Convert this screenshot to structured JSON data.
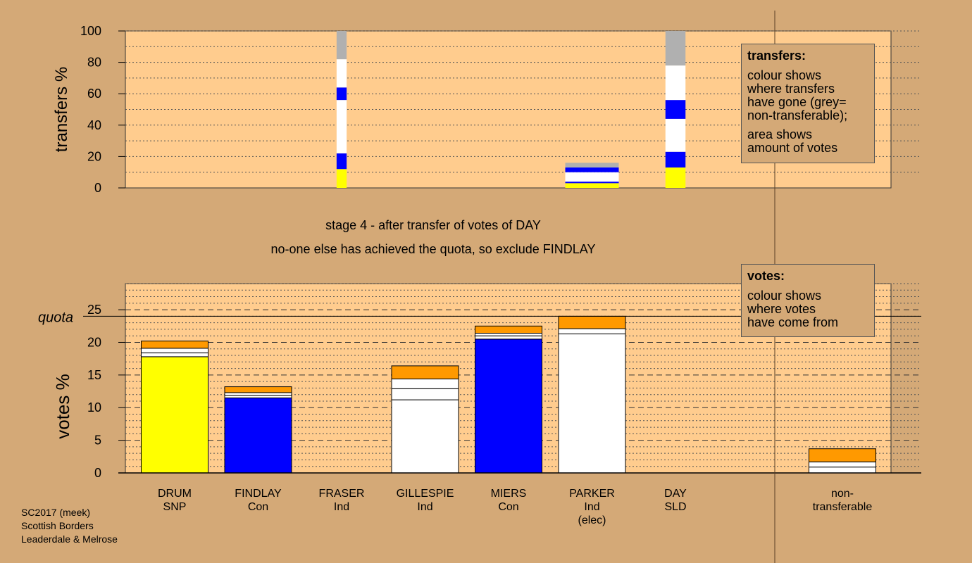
{
  "colors": {
    "background": "#d4a977",
    "plot_area": "#ffcc8e",
    "SNP": "#ffff00",
    "Con": "#0000ff",
    "Ind": "#ffffff",
    "LD": "#ff9900",
    "non_transferable": "#b0b0b0"
  },
  "stage_text": "stage 4 - after transfer of votes of DAY",
  "exclusion_text": "no-one else has achieved the quota, so exclude FINDLAY",
  "transfers_legend": {
    "heading": "transfers:",
    "line1": "colour shows\nwhere transfers\nhave gone (grey=\nnon-transferable);",
    "line2": "area shows\namount of votes"
  },
  "votes_legend": {
    "heading": "votes:",
    "line1": "colour shows\nwhere votes\nhave come from"
  },
  "credits": {
    "line1": "SC2017 (meek)",
    "line2": "Scottish Borders",
    "line3": "Leaderdale & Melrose"
  },
  "chart_data": [
    {
      "id": "transfers",
      "type": "bar",
      "ylabel": "transfers %",
      "ylim": [
        0,
        100
      ],
      "yticks": [
        0,
        20,
        40,
        60,
        80,
        100
      ],
      "legend_placement": "top-right",
      "bars": [
        {
          "category_index": 2,
          "width_frac": 0.15,
          "segments": [
            {
              "from": 0,
              "to": 12,
              "color": "#ffff00"
            },
            {
              "from": 12,
              "to": 22,
              "color": "#0000ff"
            },
            {
              "from": 22,
              "to": 56,
              "color": "#ffffff"
            },
            {
              "from": 56,
              "to": 64,
              "color": "#0000ff"
            },
            {
              "from": 64,
              "to": 82,
              "color": "#ffffff"
            },
            {
              "from": 82,
              "to": 100,
              "color": "#b0b0b0"
            }
          ]
        },
        {
          "category_index": 5,
          "width_frac": 0.8,
          "segments": [
            {
              "from": 0,
              "to": 3,
              "color": "#ffff00"
            },
            {
              "from": 3,
              "to": 4,
              "color": "#0000ff"
            },
            {
              "from": 4,
              "to": 10,
              "color": "#ffffff"
            },
            {
              "from": 10,
              "to": 13,
              "color": "#0000ff"
            },
            {
              "from": 13,
              "to": 16,
              "color": "#b0b0b0"
            }
          ]
        },
        {
          "category_index": 6,
          "width_frac": 0.3,
          "segments": [
            {
              "from": 0,
              "to": 13,
              "color": "#ffff00"
            },
            {
              "from": 13,
              "to": 23,
              "color": "#0000ff"
            },
            {
              "from": 23,
              "to": 44,
              "color": "#ffffff"
            },
            {
              "from": 44,
              "to": 56,
              "color": "#0000ff"
            },
            {
              "from": 56,
              "to": 78,
              "color": "#ffffff"
            },
            {
              "from": 78,
              "to": 100,
              "color": "#b0b0b0"
            }
          ]
        }
      ]
    },
    {
      "id": "votes",
      "type": "bar",
      "ylabel": "votes %",
      "ylim": [
        0,
        29
      ],
      "yticks": [
        0,
        5,
        10,
        15,
        20,
        25
      ],
      "quota": 24,
      "quota_label": "quota",
      "legend_placement": "top-right",
      "categories": [
        {
          "name": "DRUM",
          "party": "SNP",
          "extra": ""
        },
        {
          "name": "FINDLAY",
          "party": "Con",
          "extra": ""
        },
        {
          "name": "FRASER",
          "party": "Ind",
          "extra": ""
        },
        {
          "name": "GILLESPIE",
          "party": "Ind",
          "extra": ""
        },
        {
          "name": "MIERS",
          "party": "Con",
          "extra": ""
        },
        {
          "name": "PARKER",
          "party": "Ind",
          "extra": "(elec)"
        },
        {
          "name": "DAY",
          "party": "SLD",
          "extra": ""
        },
        {
          "name": "",
          "party": "",
          "extra": ""
        },
        {
          "name": "non-",
          "party": "transferable",
          "extra": ""
        }
      ],
      "bars": [
        {
          "category_index": 0,
          "segments": [
            {
              "from": 0,
              "to": 17.8,
              "color": "#ffff00"
            },
            {
              "from": 17.8,
              "to": 18.4,
              "color": "#ffffff"
            },
            {
              "from": 18.4,
              "to": 19.1,
              "color": "#ffffff"
            },
            {
              "from": 19.1,
              "to": 20.2,
              "color": "#ff9900"
            }
          ]
        },
        {
          "category_index": 1,
          "segments": [
            {
              "from": 0,
              "to": 11.5,
              "color": "#0000ff"
            },
            {
              "from": 11.5,
              "to": 11.9,
              "color": "#ffffff"
            },
            {
              "from": 11.9,
              "to": 12.3,
              "color": "#ffffff"
            },
            {
              "from": 12.3,
              "to": 13.2,
              "color": "#ff9900"
            }
          ]
        },
        {
          "category_index": 3,
          "segments": [
            {
              "from": 0,
              "to": 11.2,
              "color": "#ffffff"
            },
            {
              "from": 11.2,
              "to": 12.9,
              "color": "#ffffff"
            },
            {
              "from": 12.9,
              "to": 14.4,
              "color": "#ffffff"
            },
            {
              "from": 14.4,
              "to": 16.4,
              "color": "#ff9900"
            }
          ]
        },
        {
          "category_index": 4,
          "segments": [
            {
              "from": 0,
              "to": 20.5,
              "color": "#0000ff"
            },
            {
              "from": 20.5,
              "to": 21.0,
              "color": "#ffffff"
            },
            {
              "from": 21.0,
              "to": 21.4,
              "color": "#ffffff"
            },
            {
              "from": 21.4,
              "to": 22.5,
              "color": "#ff9900"
            }
          ]
        },
        {
          "category_index": 5,
          "segments": [
            {
              "from": 0,
              "to": 21.3,
              "color": "#ffffff"
            },
            {
              "from": 21.3,
              "to": 22.1,
              "color": "#ffffff"
            },
            {
              "from": 22.1,
              "to": 24.0,
              "color": "#ff9900"
            }
          ]
        },
        {
          "category_index": 8,
          "segments": [
            {
              "from": 0,
              "to": 0.9,
              "color": "#ffffff"
            },
            {
              "from": 0.9,
              "to": 1.7,
              "color": "#ffffff"
            },
            {
              "from": 1.7,
              "to": 3.7,
              "color": "#ff9900"
            }
          ]
        }
      ]
    }
  ]
}
